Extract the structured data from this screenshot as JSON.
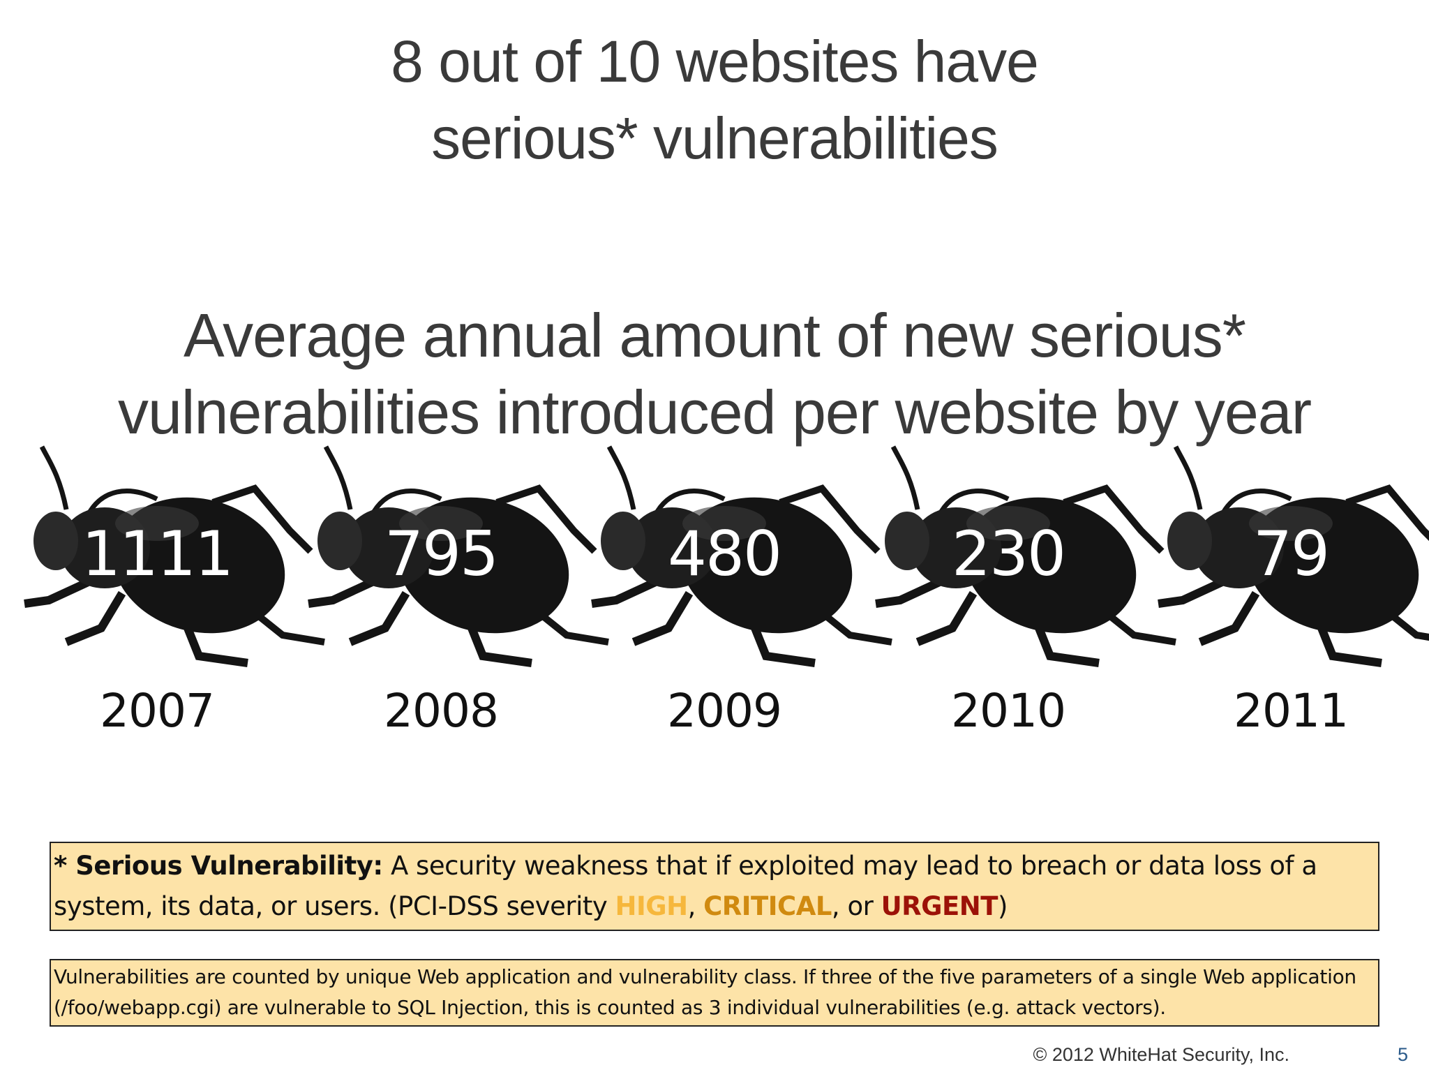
{
  "title": [
    "8 out of 10 websites have",
    "serious* vulnerabilities"
  ],
  "subtitle": [
    "Average annual amount of new serious*",
    "vulnerabilities introduced per website by year"
  ],
  "items": [
    {
      "value": "1111",
      "year": "2007"
    },
    {
      "value": "795",
      "year": "2008"
    },
    {
      "value": "480",
      "year": "2009"
    },
    {
      "value": "230",
      "year": "2010"
    },
    {
      "value": "79",
      "year": "2011"
    }
  ],
  "definition": [
    {
      "text": "* Serious Vulnerability:",
      "bold": true,
      "color": "#111111"
    },
    {
      "text": " A security weakness that if exploited may lead to breach or data loss of a system, its data, or users. (PCI-DSS severity ",
      "bold": false,
      "color": "#111111"
    },
    {
      "text": "HIGH",
      "bold": true,
      "color": "#f6b73c"
    },
    {
      "text": ", ",
      "bold": false,
      "color": "#111111"
    },
    {
      "text": "CRITICAL",
      "bold": true,
      "color": "#d08a10"
    },
    {
      "text": ", or ",
      "bold": false,
      "color": "#111111"
    },
    {
      "text": "URGENT",
      "bold": true,
      "color": "#9c1208"
    },
    {
      "text": ")",
      "bold": false,
      "color": "#111111"
    }
  ],
  "note": "Vulnerabilities are counted by unique Web application and vulnerability class. If three of the five parameters of a single Web application (/foo/webapp.cgi) are vulnerable to SQL Injection, this is counted as 3 individual vulnerabilities (e.g. attack vectors).",
  "footer": "© 2012 WhiteHat Security, Inc.",
  "page_number": "5"
}
